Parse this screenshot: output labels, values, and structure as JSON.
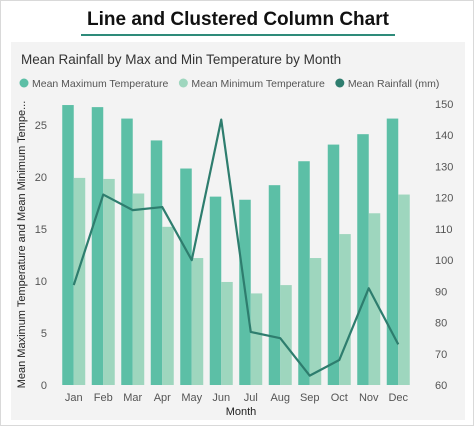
{
  "header": {
    "title": "Line and Clustered Column Chart"
  },
  "chart_data": {
    "type": "bar",
    "title": "Mean Rainfall by Max and Min Temperature by Month",
    "xlabel": "Month",
    "ylabel": "Mean Maximum Temperature and Mean Minimum Tempe...",
    "y2label": "",
    "categories": [
      "Jan",
      "Feb",
      "Mar",
      "Apr",
      "May",
      "Jun",
      "Jul",
      "Aug",
      "Sep",
      "Oct",
      "Nov",
      "Dec"
    ],
    "ylim": [
      0,
      27
    ],
    "yticks": [
      0,
      5,
      10,
      15,
      20,
      25
    ],
    "y2lim": [
      60,
      150
    ],
    "y2ticks": [
      60,
      70,
      80,
      90,
      100,
      110,
      120,
      130,
      140,
      150
    ],
    "grid": false,
    "legend_position": "top-left",
    "series": [
      {
        "name": "Mean Maximum Temperature",
        "type": "bar",
        "axis": "left",
        "color": "#5cbfa6",
        "values": [
          26.9,
          26.7,
          25.6,
          23.5,
          20.8,
          18.1,
          17.8,
          19.2,
          21.5,
          23.1,
          24.1,
          25.6
        ]
      },
      {
        "name": "Mean Minimum Temperature",
        "type": "bar",
        "axis": "left",
        "color": "#9ed6be",
        "values": [
          19.9,
          19.8,
          18.4,
          15.2,
          12.2,
          9.9,
          8.8,
          9.6,
          12.2,
          14.5,
          16.5,
          18.3
        ]
      },
      {
        "name": "Mean Rainfall (mm)",
        "type": "line",
        "axis": "right",
        "color": "#2e7d6e",
        "values": [
          92,
          121,
          116,
          117,
          100,
          145,
          77,
          75,
          63,
          68,
          91,
          73
        ]
      }
    ]
  }
}
